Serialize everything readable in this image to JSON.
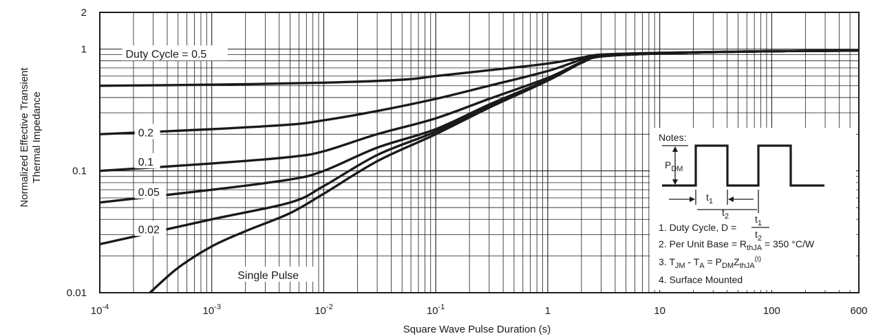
{
  "chart_data": {
    "type": "line",
    "title": "",
    "xlabel": "Square Wave Pulse Duration (s)",
    "ylabel_lines": [
      "Normalized Effective Transient",
      "Thermal Impedance"
    ],
    "x_scale": "log",
    "y_scale": "log",
    "xlim": [
      0.0001,
      600
    ],
    "ylim": [
      0.01,
      2
    ],
    "grid": true,
    "x_ticks": [
      {
        "value": 0.0001,
        "base": "10",
        "exp": "-4"
      },
      {
        "value": 0.001,
        "base": "10",
        "exp": "-3"
      },
      {
        "value": 0.01,
        "base": "10",
        "exp": "-2"
      },
      {
        "value": 0.1,
        "base": "10",
        "exp": "-1"
      },
      {
        "value": 1,
        "base": "1",
        "exp": ""
      },
      {
        "value": 10,
        "base": "10",
        "exp": ""
      },
      {
        "value": 100,
        "base": "100",
        "exp": ""
      },
      {
        "value": 600,
        "base": "600",
        "exp": ""
      }
    ],
    "y_ticks": [
      {
        "value": 2,
        "label": "2"
      },
      {
        "value": 1,
        "label": "1"
      },
      {
        "value": 0.1,
        "label": "0.1"
      },
      {
        "value": 0.01,
        "label": "0.01"
      }
    ],
    "series": [
      {
        "name": "Duty Cycle = 0.5",
        "label_at": [
          0.00017,
          0.88
        ],
        "x": [
          0.0001,
          0.001,
          0.01,
          0.05,
          0.1,
          0.3,
          1,
          2,
          3,
          10,
          100,
          600
        ],
        "y": [
          0.5,
          0.51,
          0.53,
          0.56,
          0.6,
          0.67,
          0.76,
          0.85,
          0.9,
          0.93,
          0.96,
          0.97
        ]
      },
      {
        "name": "0.2",
        "label_at": [
          0.00022,
          0.2
        ],
        "x": [
          0.0001,
          0.001,
          0.005,
          0.01,
          0.03,
          0.1,
          0.3,
          1,
          2,
          3,
          10,
          100,
          600
        ],
        "y": [
          0.2,
          0.22,
          0.24,
          0.26,
          0.31,
          0.39,
          0.5,
          0.66,
          0.82,
          0.89,
          0.93,
          0.96,
          0.97
        ]
      },
      {
        "name": "0.1",
        "label_at": [
          0.00022,
          0.115
        ],
        "x": [
          0.0001,
          0.001,
          0.005,
          0.01,
          0.03,
          0.1,
          0.3,
          1,
          2,
          3,
          10,
          100,
          600
        ],
        "y": [
          0.1,
          0.115,
          0.13,
          0.145,
          0.2,
          0.27,
          0.39,
          0.58,
          0.78,
          0.87,
          0.92,
          0.96,
          0.97
        ]
      },
      {
        "name": "0.05",
        "label_at": [
          0.00022,
          0.065
        ],
        "x": [
          0.0001,
          0.001,
          0.005,
          0.01,
          0.03,
          0.1,
          0.3,
          1,
          2,
          3,
          10,
          100,
          600
        ],
        "y": [
          0.055,
          0.07,
          0.085,
          0.1,
          0.155,
          0.22,
          0.35,
          0.56,
          0.78,
          0.87,
          0.92,
          0.96,
          0.97
        ]
      },
      {
        "name": "0.02",
        "label_at": [
          0.00022,
          0.032
        ],
        "x": [
          0.0001,
          0.001,
          0.005,
          0.01,
          0.03,
          0.1,
          0.3,
          1,
          2,
          3,
          10,
          100,
          600
        ],
        "y": [
          0.025,
          0.04,
          0.055,
          0.075,
          0.135,
          0.21,
          0.34,
          0.56,
          0.77,
          0.87,
          0.92,
          0.96,
          0.97
        ]
      },
      {
        "name": "Single Pulse",
        "label_at": [
          0.0017,
          0.0135
        ],
        "x": [
          0.00028,
          0.0005,
          0.001,
          0.002,
          0.005,
          0.01,
          0.03,
          0.1,
          0.3,
          1,
          2,
          3,
          10,
          100,
          600
        ],
        "y": [
          0.01,
          0.016,
          0.024,
          0.032,
          0.045,
          0.065,
          0.12,
          0.2,
          0.33,
          0.55,
          0.77,
          0.87,
          0.92,
          0.96,
          0.97
        ]
      }
    ]
  },
  "notes": {
    "heading": "Notes:",
    "pdm_main": "P",
    "pdm_sub": "DM",
    "t1_main": "t",
    "t1_sub": "1",
    "t2_main": "t",
    "t2_sub": "2",
    "line1_prefix": "1. Duty Cycle, D =",
    "line1_num": "t1",
    "line1_den": "t2",
    "line2_prefix": "2. Per Unit Base = R",
    "line2_sub": "thJA",
    "line2_suffix": " = 350 °C/W",
    "line3": {
      "a": "3. T",
      "a_sub": "JM",
      "b": " - T",
      "b_sub": "A",
      "c": " = P",
      "c_sub": "DM",
      "d": "Z",
      "d_sub": "thJA",
      "d_sup": "(t)"
    },
    "line4": "4. Surface Mounted"
  }
}
